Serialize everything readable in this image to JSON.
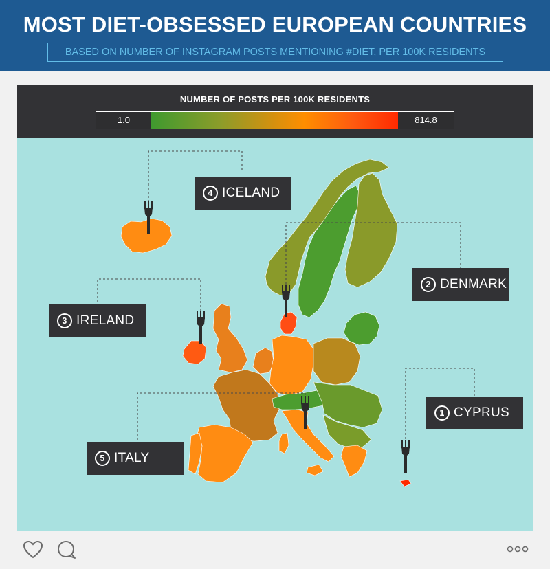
{
  "header": {
    "title": "MOST DIET-OBSESSED EUROPEAN COUNTRIES",
    "subtitle": "BASED ON NUMBER OF INSTAGRAM POSTS MENTIONING #DIET, PER 100K RESIDENTS"
  },
  "legend": {
    "title": "NUMBER OF POSTS PER 100K RESIDENTS",
    "min_label": "1.0",
    "max_label": "814.8",
    "min_value": 1.0,
    "max_value": 814.8,
    "color_low": "#3f9a2f",
    "color_mid": "#ff8e00",
    "color_high": "#ff2a00"
  },
  "colors": {
    "header_bg": "#1e5a92",
    "accent": "#63bde8",
    "sea": "#a9e1e0",
    "label_bg": "#323235"
  },
  "map": {
    "projection": "europe",
    "ranked_countries": [
      {
        "rank": "1",
        "name": "CYPRUS"
      },
      {
        "rank": "2",
        "name": "DENMARK"
      },
      {
        "rank": "3",
        "name": "IRELAND"
      },
      {
        "rank": "4",
        "name": "ICELAND"
      },
      {
        "rank": "5",
        "name": "ITALY"
      }
    ],
    "marker_icon": "fork-icon"
  },
  "footer": {
    "icons": [
      "heart-icon",
      "comment-icon",
      "more-icon"
    ]
  }
}
